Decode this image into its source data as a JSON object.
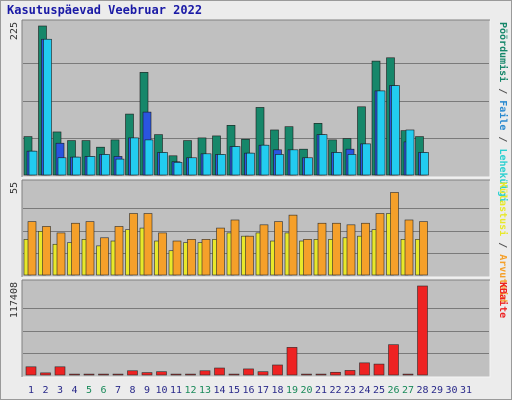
{
  "title": "Kasutuspäevad Veebruar 2022",
  "colors": {
    "background": "#ececec",
    "panel": "#c0c0c0",
    "grid": "#7a7a7a",
    "title": "#1a1aa6",
    "days_normal": "#2a2a8a",
    "days_weekend": "#1a8a5a",
    "visits": "#16876a",
    "pages": "#2a55e0",
    "files": "#22ccf0",
    "visitors": "#e8e82a",
    "sites": "#f5a02a",
    "kbytes": "#ee2222"
  },
  "right_labels": {
    "top": [
      {
        "text": "Pöördumisi",
        "color": "#16876a"
      },
      {
        "text": " / ",
        "color": "#555555"
      },
      {
        "text": "Faile",
        "color": "#2a8ad0"
      },
      {
        "text": " / ",
        "color": "#555555"
      },
      {
        "text": "Lehekülgi",
        "color": "#2ad0d0"
      }
    ],
    "middle": [
      {
        "text": "Külastusi",
        "color": "#e8e82a"
      },
      {
        "text": " / ",
        "color": "#555555"
      },
      {
        "text": "Arvuteid",
        "color": "#f5a02a"
      }
    ],
    "bottom": [
      {
        "text": "KBaite",
        "color": "#ee2222"
      }
    ]
  },
  "chart_data": {
    "type": "bar",
    "title": "Kasutuspäevad Veebruar 2022",
    "categories": [
      "1",
      "2",
      "3",
      "4",
      "5",
      "6",
      "7",
      "8",
      "9",
      "10",
      "11",
      "12",
      "13",
      "14",
      "15",
      "16",
      "17",
      "18",
      "19",
      "20",
      "21",
      "22",
      "23",
      "24",
      "25",
      "26",
      "27",
      "28",
      "29",
      "30",
      "31"
    ],
    "weekend_days": [
      "5",
      "6",
      "12",
      "13",
      "19",
      "20",
      "26",
      "27"
    ],
    "panels": [
      {
        "name": "hits",
        "ymax_label": "225",
        "ylim": [
          0,
          225
        ],
        "series": [
          {
            "name": "Pöördumisi",
            "values": [
              58,
              225,
              65,
              52,
              52,
              42,
              53,
              92,
              155,
              61,
              29,
              52,
              56,
              59,
              75,
              54,
              102,
              68,
              73,
              39,
              78,
              53,
              55,
              103,
              172,
              177,
              67,
              58,
              0,
              0,
              0
            ]
          },
          {
            "name": "Faile",
            "values": [
              36,
              205,
              48,
              27,
              28,
              31,
              28,
              56,
              95,
              34,
              20,
              26,
              32,
              31,
              43,
              33,
              45,
              38,
              38,
              26,
              61,
              34,
              39,
              47,
              127,
              135,
              50,
              34,
              0,
              0,
              0
            ]
          },
          {
            "name": "Lehekülgi",
            "values": [
              36,
              205,
              26,
              27,
              28,
              31,
              24,
              56,
              53,
              34,
              19,
              26,
              32,
              31,
              43,
              33,
              45,
              31,
              38,
              26,
              61,
              34,
              31,
              47,
              127,
              135,
              68,
              34,
              0,
              0,
              0
            ]
          }
        ]
      },
      {
        "name": "visits",
        "ymax_label": "55",
        "ylim": [
          0,
          55
        ],
        "series": [
          {
            "name": "Külastusi",
            "values": [
              22,
              27,
              19,
              20,
              22,
              18,
              21,
              28,
              29,
              21,
              15,
              20,
              20,
              22,
              26,
              24,
              26,
              21,
              26,
              21,
              22,
              22,
              23,
              24,
              28,
              38,
              22,
              22,
              0,
              0,
              0
            ]
          },
          {
            "name": "Arvuteid",
            "values": [
              33,
              30,
              26,
              32,
              33,
              23,
              30,
              38,
              38,
              26,
              21,
              22,
              22,
              29,
              34,
              24,
              31,
              33,
              37,
              22,
              32,
              32,
              31,
              32,
              38,
              51,
              34,
              33,
              0,
              0,
              0
            ]
          }
        ]
      },
      {
        "name": "kbytes",
        "ymax_label": "117408",
        "ylim": [
          0,
          117408
        ],
        "series": [
          {
            "name": "KBaite",
            "values": [
              10800,
              2800,
              10800,
              1200,
              1200,
              1200,
              1200,
              5600,
              3200,
              4400,
              1200,
              1200,
              5600,
              9200,
              1200,
              8000,
              4400,
              13200,
              36400,
              1200,
              1200,
              3600,
              6000,
              16000,
              14400,
              40000,
              1200,
              117408,
              0,
              0,
              0
            ]
          }
        ]
      }
    ]
  }
}
